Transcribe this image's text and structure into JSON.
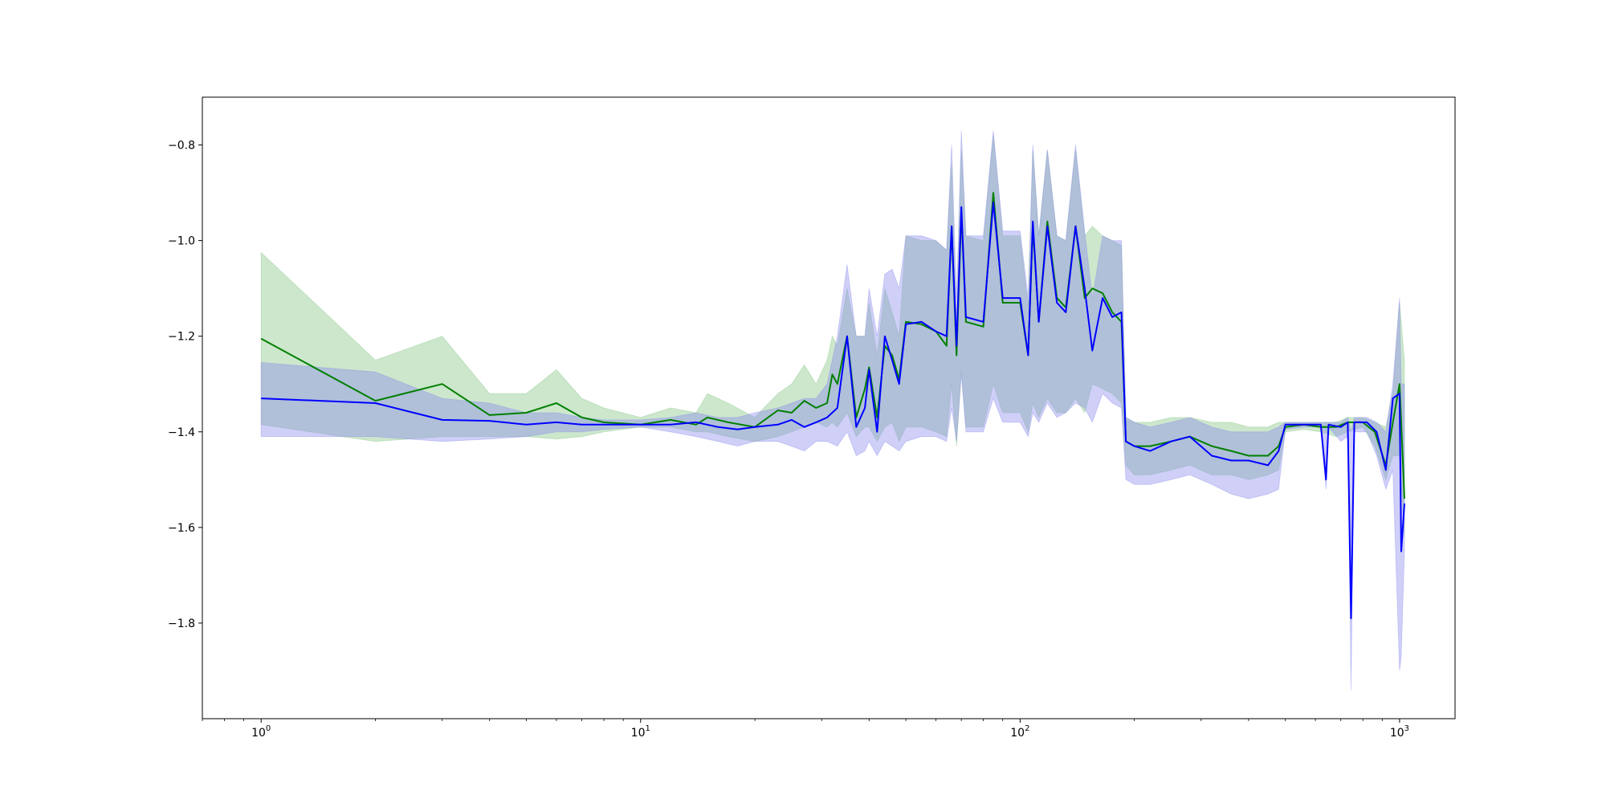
{
  "chart_data": {
    "type": "line",
    "title": "",
    "xlabel": "",
    "ylabel": "",
    "xscale": "log",
    "xlim": [
      0.7,
      1400
    ],
    "ylim": [
      -2.0,
      -0.7
    ],
    "grid": false,
    "legend": "none",
    "x_ticks": [
      {
        "value": 1,
        "base": "10",
        "exp": "0"
      },
      {
        "value": 10,
        "base": "10",
        "exp": "1"
      },
      {
        "value": 100,
        "base": "10",
        "exp": "2"
      },
      {
        "value": 1000,
        "base": "10",
        "exp": "3"
      }
    ],
    "y_ticks": [
      {
        "value": -0.8,
        "label": "−0.8"
      },
      {
        "value": -1.0,
        "label": "−1.0"
      },
      {
        "value": -1.2,
        "label": "−1.2"
      },
      {
        "value": -1.4,
        "label": "−1.4"
      },
      {
        "value": -1.6,
        "label": "−1.6"
      },
      {
        "value": -1.8,
        "label": "−1.8"
      }
    ],
    "series": [
      {
        "color": "#008000",
        "band_color": "#7fc47f",
        "points": [
          [
            1,
            -1.205,
            -1.385,
            -1.025
          ],
          [
            2,
            -1.335,
            -1.42,
            -1.25
          ],
          [
            3,
            -1.3,
            -1.41,
            -1.2
          ],
          [
            4,
            -1.365,
            -1.41,
            -1.32
          ],
          [
            5,
            -1.36,
            -1.41,
            -1.32
          ],
          [
            6,
            -1.34,
            -1.415,
            -1.27
          ],
          [
            7,
            -1.37,
            -1.41,
            -1.33
          ],
          [
            8,
            -1.38,
            -1.4,
            -1.35
          ],
          [
            10,
            -1.385,
            -1.39,
            -1.37
          ],
          [
            12,
            -1.375,
            -1.39,
            -1.35
          ],
          [
            14,
            -1.385,
            -1.4,
            -1.36
          ],
          [
            15,
            -1.37,
            -1.4,
            -1.32
          ],
          [
            17,
            -1.38,
            -1.41,
            -1.34
          ],
          [
            20,
            -1.39,
            -1.42,
            -1.37
          ],
          [
            23,
            -1.355,
            -1.41,
            -1.32
          ],
          [
            25,
            -1.36,
            -1.4,
            -1.3
          ],
          [
            27,
            -1.335,
            -1.39,
            -1.26
          ],
          [
            29,
            -1.35,
            -1.38,
            -1.3
          ],
          [
            31,
            -1.34,
            -1.39,
            -1.25
          ],
          [
            32,
            -1.28,
            -1.38,
            -1.2
          ],
          [
            33,
            -1.3,
            -1.39,
            -1.22
          ],
          [
            35,
            -1.2,
            -1.36,
            -1.1
          ],
          [
            37,
            -1.37,
            -1.41,
            -1.2
          ],
          [
            39,
            -1.31,
            -1.39,
            -1.2
          ],
          [
            40,
            -1.265,
            -1.39,
            -1.13
          ],
          [
            42,
            -1.37,
            -1.42,
            -1.24
          ],
          [
            44,
            -1.22,
            -1.39,
            -1.1
          ],
          [
            46,
            -1.24,
            -1.38,
            -1.15
          ],
          [
            48,
            -1.29,
            -1.42,
            -1.2
          ],
          [
            50,
            -1.17,
            -1.39,
            -0.99
          ],
          [
            55,
            -1.175,
            -1.39,
            -1.0
          ],
          [
            60,
            -1.19,
            -1.4,
            -1.0
          ],
          [
            64,
            -1.22,
            -1.41,
            -1.02
          ],
          [
            66,
            -0.97,
            -1.3,
            -0.84
          ],
          [
            68,
            -1.24,
            -1.43,
            -1.18
          ],
          [
            70,
            -0.94,
            -1.27,
            -0.81
          ],
          [
            72,
            -1.17,
            -1.39,
            -0.99
          ],
          [
            80,
            -1.18,
            -1.39,
            -1.0
          ],
          [
            85,
            -0.9,
            -1.3,
            -0.78
          ],
          [
            90,
            -1.13,
            -1.36,
            -0.99
          ],
          [
            100,
            -1.13,
            -1.36,
            -0.99
          ],
          [
            105,
            -1.24,
            -1.4,
            -1.14
          ],
          [
            108,
            -0.97,
            -1.34,
            -0.81
          ],
          [
            112,
            -1.17,
            -1.37,
            -0.99
          ],
          [
            118,
            -0.96,
            -1.33,
            -0.81
          ],
          [
            125,
            -1.12,
            -1.36,
            -0.99
          ],
          [
            132,
            -1.14,
            -1.36,
            -1.0
          ],
          [
            140,
            -0.97,
            -1.33,
            -0.81
          ],
          [
            148,
            -1.12,
            -1.36,
            -0.99
          ],
          [
            155,
            -1.1,
            -1.3,
            -0.97
          ],
          [
            165,
            -1.11,
            -1.31,
            -0.99
          ],
          [
            175,
            -1.15,
            -1.32,
            -1.0
          ],
          [
            185,
            -1.17,
            -1.34,
            -1.01
          ],
          [
            190,
            -1.42,
            -1.47,
            -1.37
          ],
          [
            200,
            -1.43,
            -1.49,
            -1.38
          ],
          [
            220,
            -1.43,
            -1.49,
            -1.38
          ],
          [
            250,
            -1.42,
            -1.48,
            -1.37
          ],
          [
            280,
            -1.41,
            -1.47,
            -1.37
          ],
          [
            320,
            -1.43,
            -1.49,
            -1.38
          ],
          [
            360,
            -1.44,
            -1.49,
            -1.38
          ],
          [
            400,
            -1.45,
            -1.5,
            -1.39
          ],
          [
            450,
            -1.45,
            -1.49,
            -1.39
          ],
          [
            480,
            -1.43,
            -1.48,
            -1.38
          ],
          [
            500,
            -1.39,
            -1.4,
            -1.38
          ],
          [
            560,
            -1.385,
            -1.395,
            -1.38
          ],
          [
            620,
            -1.39,
            -1.4,
            -1.38
          ],
          [
            680,
            -1.39,
            -1.41,
            -1.38
          ],
          [
            730,
            -1.38,
            -1.4,
            -1.37
          ],
          [
            800,
            -1.38,
            -1.39,
            -1.37
          ],
          [
            860,
            -1.4,
            -1.43,
            -1.38
          ],
          [
            920,
            -1.47,
            -1.5,
            -1.39
          ],
          [
            960,
            -1.38,
            -1.45,
            -1.32
          ],
          [
            1000,
            -1.3,
            -1.45,
            -1.13
          ],
          [
            1030,
            -1.54,
            -1.62,
            -1.25
          ]
        ]
      },
      {
        "color": "#0000ff",
        "band_color": "#8888ee",
        "points": [
          [
            1,
            -1.33,
            -1.41,
            -1.255
          ],
          [
            2,
            -1.34,
            -1.41,
            -1.275
          ],
          [
            3,
            -1.375,
            -1.42,
            -1.33
          ],
          [
            4,
            -1.377,
            -1.415,
            -1.34
          ],
          [
            5,
            -1.385,
            -1.41,
            -1.36
          ],
          [
            6,
            -1.38,
            -1.4,
            -1.36
          ],
          [
            7,
            -1.385,
            -1.4,
            -1.37
          ],
          [
            8,
            -1.385,
            -1.395,
            -1.375
          ],
          [
            10,
            -1.385,
            -1.39,
            -1.375
          ],
          [
            12,
            -1.385,
            -1.4,
            -1.37
          ],
          [
            14,
            -1.38,
            -1.41,
            -1.36
          ],
          [
            16,
            -1.39,
            -1.42,
            -1.37
          ],
          [
            18,
            -1.395,
            -1.43,
            -1.37
          ],
          [
            20,
            -1.39,
            -1.42,
            -1.36
          ],
          [
            23,
            -1.385,
            -1.42,
            -1.35
          ],
          [
            25,
            -1.375,
            -1.43,
            -1.34
          ],
          [
            27,
            -1.39,
            -1.44,
            -1.33
          ],
          [
            29,
            -1.38,
            -1.42,
            -1.33
          ],
          [
            31,
            -1.37,
            -1.42,
            -1.3
          ],
          [
            33,
            -1.35,
            -1.43,
            -1.2
          ],
          [
            35,
            -1.2,
            -1.4,
            -1.05
          ],
          [
            37,
            -1.39,
            -1.45,
            -1.2
          ],
          [
            39,
            -1.35,
            -1.44,
            -1.2
          ],
          [
            40,
            -1.27,
            -1.42,
            -1.1
          ],
          [
            42,
            -1.4,
            -1.45,
            -1.2
          ],
          [
            44,
            -1.2,
            -1.42,
            -1.07
          ],
          [
            46,
            -1.25,
            -1.43,
            -1.06
          ],
          [
            48,
            -1.3,
            -1.44,
            -1.1
          ],
          [
            50,
            -1.175,
            -1.42,
            -0.99
          ],
          [
            55,
            -1.17,
            -1.41,
            -0.99
          ],
          [
            60,
            -1.19,
            -1.41,
            -1.0
          ],
          [
            64,
            -1.2,
            -1.42,
            -1.02
          ],
          [
            66,
            -0.97,
            -1.35,
            -0.8
          ],
          [
            68,
            -1.22,
            -1.42,
            -1.12
          ],
          [
            70,
            -0.93,
            -1.28,
            -0.77
          ],
          [
            72,
            -1.16,
            -1.4,
            -0.99
          ],
          [
            80,
            -1.17,
            -1.4,
            -0.99
          ],
          [
            85,
            -0.92,
            -1.33,
            -0.77
          ],
          [
            90,
            -1.12,
            -1.38,
            -0.98
          ],
          [
            100,
            -1.12,
            -1.38,
            -0.98
          ],
          [
            105,
            -1.24,
            -1.41,
            -1.12
          ],
          [
            108,
            -0.96,
            -1.36,
            -0.8
          ],
          [
            112,
            -1.17,
            -1.38,
            -0.99
          ],
          [
            118,
            -0.97,
            -1.34,
            -0.81
          ],
          [
            125,
            -1.13,
            -1.37,
            -0.99
          ],
          [
            132,
            -1.15,
            -1.36,
            -1.0
          ],
          [
            140,
            -0.97,
            -1.34,
            -0.8
          ],
          [
            148,
            -1.1,
            -1.35,
            -0.98
          ],
          [
            155,
            -1.23,
            -1.38,
            -1.12
          ],
          [
            165,
            -1.12,
            -1.32,
            -0.99
          ],
          [
            175,
            -1.16,
            -1.34,
            -1.0
          ],
          [
            185,
            -1.15,
            -1.35,
            -1.0
          ],
          [
            190,
            -1.42,
            -1.5,
            -1.37
          ],
          [
            200,
            -1.43,
            -1.51,
            -1.38
          ],
          [
            220,
            -1.44,
            -1.51,
            -1.39
          ],
          [
            250,
            -1.42,
            -1.5,
            -1.38
          ],
          [
            280,
            -1.41,
            -1.49,
            -1.37
          ],
          [
            320,
            -1.45,
            -1.51,
            -1.39
          ],
          [
            360,
            -1.46,
            -1.53,
            -1.4
          ],
          [
            400,
            -1.46,
            -1.54,
            -1.4
          ],
          [
            450,
            -1.47,
            -1.53,
            -1.4
          ],
          [
            480,
            -1.44,
            -1.52,
            -1.39
          ],
          [
            500,
            -1.385,
            -1.395,
            -1.38
          ],
          [
            560,
            -1.385,
            -1.39,
            -1.38
          ],
          [
            620,
            -1.385,
            -1.39,
            -1.38
          ],
          [
            640,
            -1.5,
            -1.52,
            -1.38
          ],
          [
            650,
            -1.385,
            -1.39,
            -1.38
          ],
          [
            700,
            -1.39,
            -1.42,
            -1.38
          ],
          [
            730,
            -1.38,
            -1.41,
            -1.37
          ],
          [
            745,
            -1.79,
            -1.94,
            -1.4
          ],
          [
            760,
            -1.38,
            -1.4,
            -1.37
          ],
          [
            820,
            -1.38,
            -1.4,
            -1.37
          ],
          [
            870,
            -1.4,
            -1.45,
            -1.38
          ],
          [
            920,
            -1.48,
            -1.52,
            -1.4
          ],
          [
            960,
            -1.33,
            -1.48,
            -1.3
          ],
          [
            1000,
            -1.32,
            -1.9,
            -1.12
          ],
          [
            1010,
            -1.65,
            -1.87,
            -1.3
          ],
          [
            1030,
            -1.55,
            -1.65,
            -1.3
          ]
        ]
      }
    ]
  }
}
